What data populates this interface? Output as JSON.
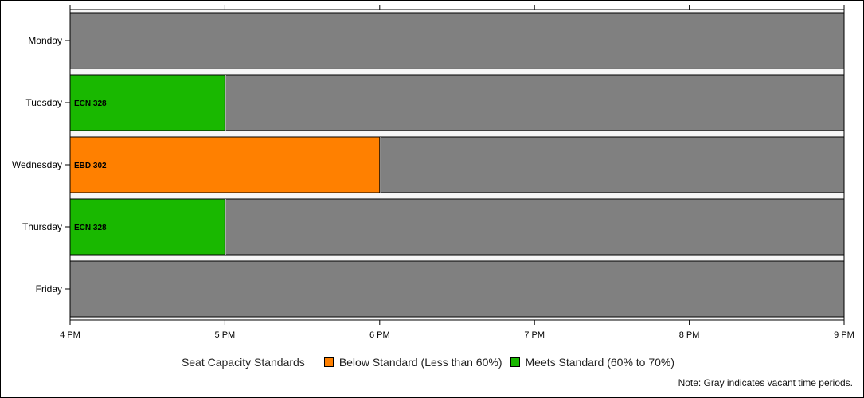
{
  "chart_data": {
    "type": "bar",
    "orientation": "horizontal-timeline",
    "x_axis": {
      "start_hour": 16,
      "end_hour": 21,
      "ticks": [
        {
          "value": 16,
          "label": "4 PM"
        },
        {
          "value": 17,
          "label": "5 PM"
        },
        {
          "value": 18,
          "label": "6 PM"
        },
        {
          "value": 19,
          "label": "7 PM"
        },
        {
          "value": 20,
          "label": "8 PM"
        },
        {
          "value": 21,
          "label": "9 PM"
        }
      ]
    },
    "categories": [
      "Monday",
      "Tuesday",
      "Wednesday",
      "Thursday",
      "Friday"
    ],
    "bookings": [
      {
        "day": "Tuesday",
        "start": 16,
        "end": 17,
        "label": "ECN 328",
        "status": "meets"
      },
      {
        "day": "Wednesday",
        "start": 16,
        "end": 18,
        "label": "EBD 302",
        "status": "below"
      },
      {
        "day": "Thursday",
        "start": 16,
        "end": 17,
        "label": "ECN 328",
        "status": "meets"
      }
    ],
    "colors": {
      "vacant": "#808080",
      "below": "#ff8000",
      "meets": "#19b800",
      "band": "#e4e4e4"
    },
    "legend": {
      "title": "Seat Capacity Standards",
      "items": [
        {
          "key": "below",
          "label": "Below Standard (Less than 60%)",
          "color": "#ff8000"
        },
        {
          "key": "meets",
          "label": "Meets Standard (60% to 70%)",
          "color": "#19b800"
        }
      ],
      "placement": "bottom"
    },
    "note": "Note: Gray indicates vacant time periods."
  }
}
